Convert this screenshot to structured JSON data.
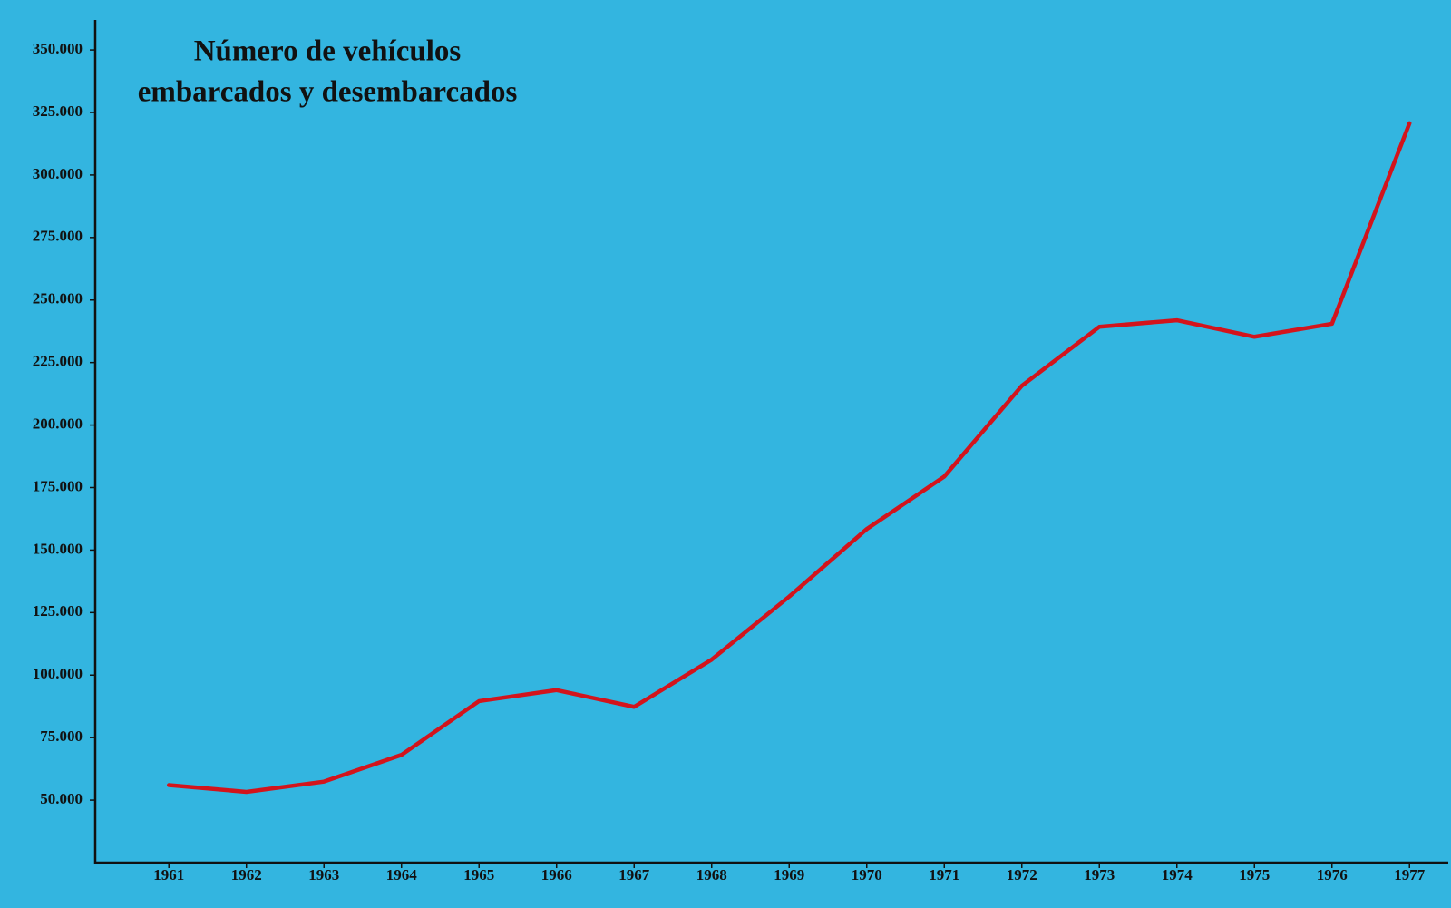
{
  "chart_data": {
    "type": "line",
    "title": [
      "Número de vehículos",
      "embarcados y desembarcados"
    ],
    "x": [
      1961,
      1962,
      1963,
      1964,
      1965,
      1966,
      1967,
      1968,
      1969,
      1970,
      1971,
      1972,
      1973,
      1974,
      1975,
      1976,
      1977
    ],
    "series": [
      {
        "color": "#d3141c",
        "values": [
          56000,
          53300,
          57400,
          68100,
          89600,
          94000,
          87300,
          106200,
          131400,
          158400,
          179400,
          215700,
          239300,
          241900,
          235300,
          240500,
          320700
        ]
      }
    ],
    "xlim": [
      1960.05,
      1977.5
    ],
    "xticks": [
      1961,
      1962,
      1963,
      1964,
      1965,
      1966,
      1967,
      1968,
      1969,
      1970,
      1971,
      1972,
      1973,
      1974,
      1975,
      1976,
      1977
    ],
    "ylim": [
      25000,
      362000
    ],
    "yticks": [
      {
        "value": 50000,
        "label": "50.000"
      },
      {
        "value": 75000,
        "label": "75.000"
      },
      {
        "value": 100000,
        "label": "100.000"
      },
      {
        "value": 125000,
        "label": "125.000"
      },
      {
        "value": 150000,
        "label": "150.000"
      },
      {
        "value": 175000,
        "label": "175.000"
      },
      {
        "value": 200000,
        "label": "200.000"
      },
      {
        "value": 225000,
        "label": "225.000"
      },
      {
        "value": 250000,
        "label": "250.000"
      },
      {
        "value": 275000,
        "label": "275.000"
      },
      {
        "value": 300000,
        "label": "300.000"
      },
      {
        "value": 325000,
        "label": "325.000"
      },
      {
        "value": 350000,
        "label": "350.000"
      }
    ],
    "grid": false
  }
}
